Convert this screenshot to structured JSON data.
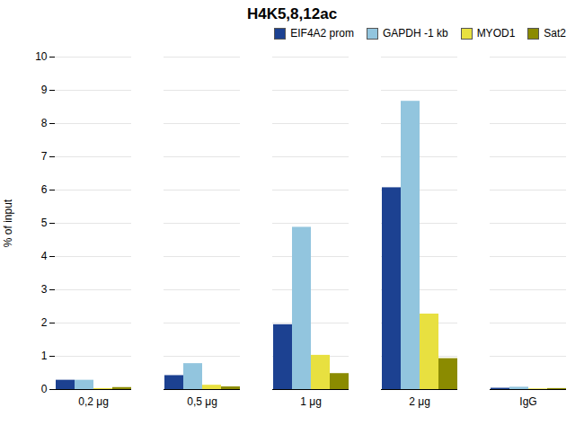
{
  "chart_data": {
    "type": "bar",
    "title": "H4K5,8,12ac",
    "ylabel": "% of input",
    "categories": [
      "0,2 μg",
      "0,5 μg",
      "1 μg",
      "2 μg",
      "IgG"
    ],
    "series": [
      {
        "name": "EIF4A2 prom",
        "color": "#1c4191",
        "values": [
          0.28,
          0.42,
          1.95,
          6.07,
          0.04
        ]
      },
      {
        "name": "GAPDH -1 kb",
        "color": "#92c5de",
        "values": [
          0.28,
          0.78,
          4.88,
          8.67,
          0.07
        ]
      },
      {
        "name": "MYOD1",
        "color": "#e8e040",
        "values": [
          0.03,
          0.13,
          1.03,
          2.27,
          0.02
        ]
      },
      {
        "name": "Sat2",
        "color": "#8b8b00",
        "values": [
          0.06,
          0.08,
          0.48,
          0.93,
          0.03
        ]
      }
    ],
    "ylim": [
      0,
      10
    ],
    "yticks": [
      0,
      1,
      2,
      3,
      4,
      5,
      6,
      7,
      8,
      9,
      10
    ],
    "grid": true,
    "legend": "upper right"
  }
}
